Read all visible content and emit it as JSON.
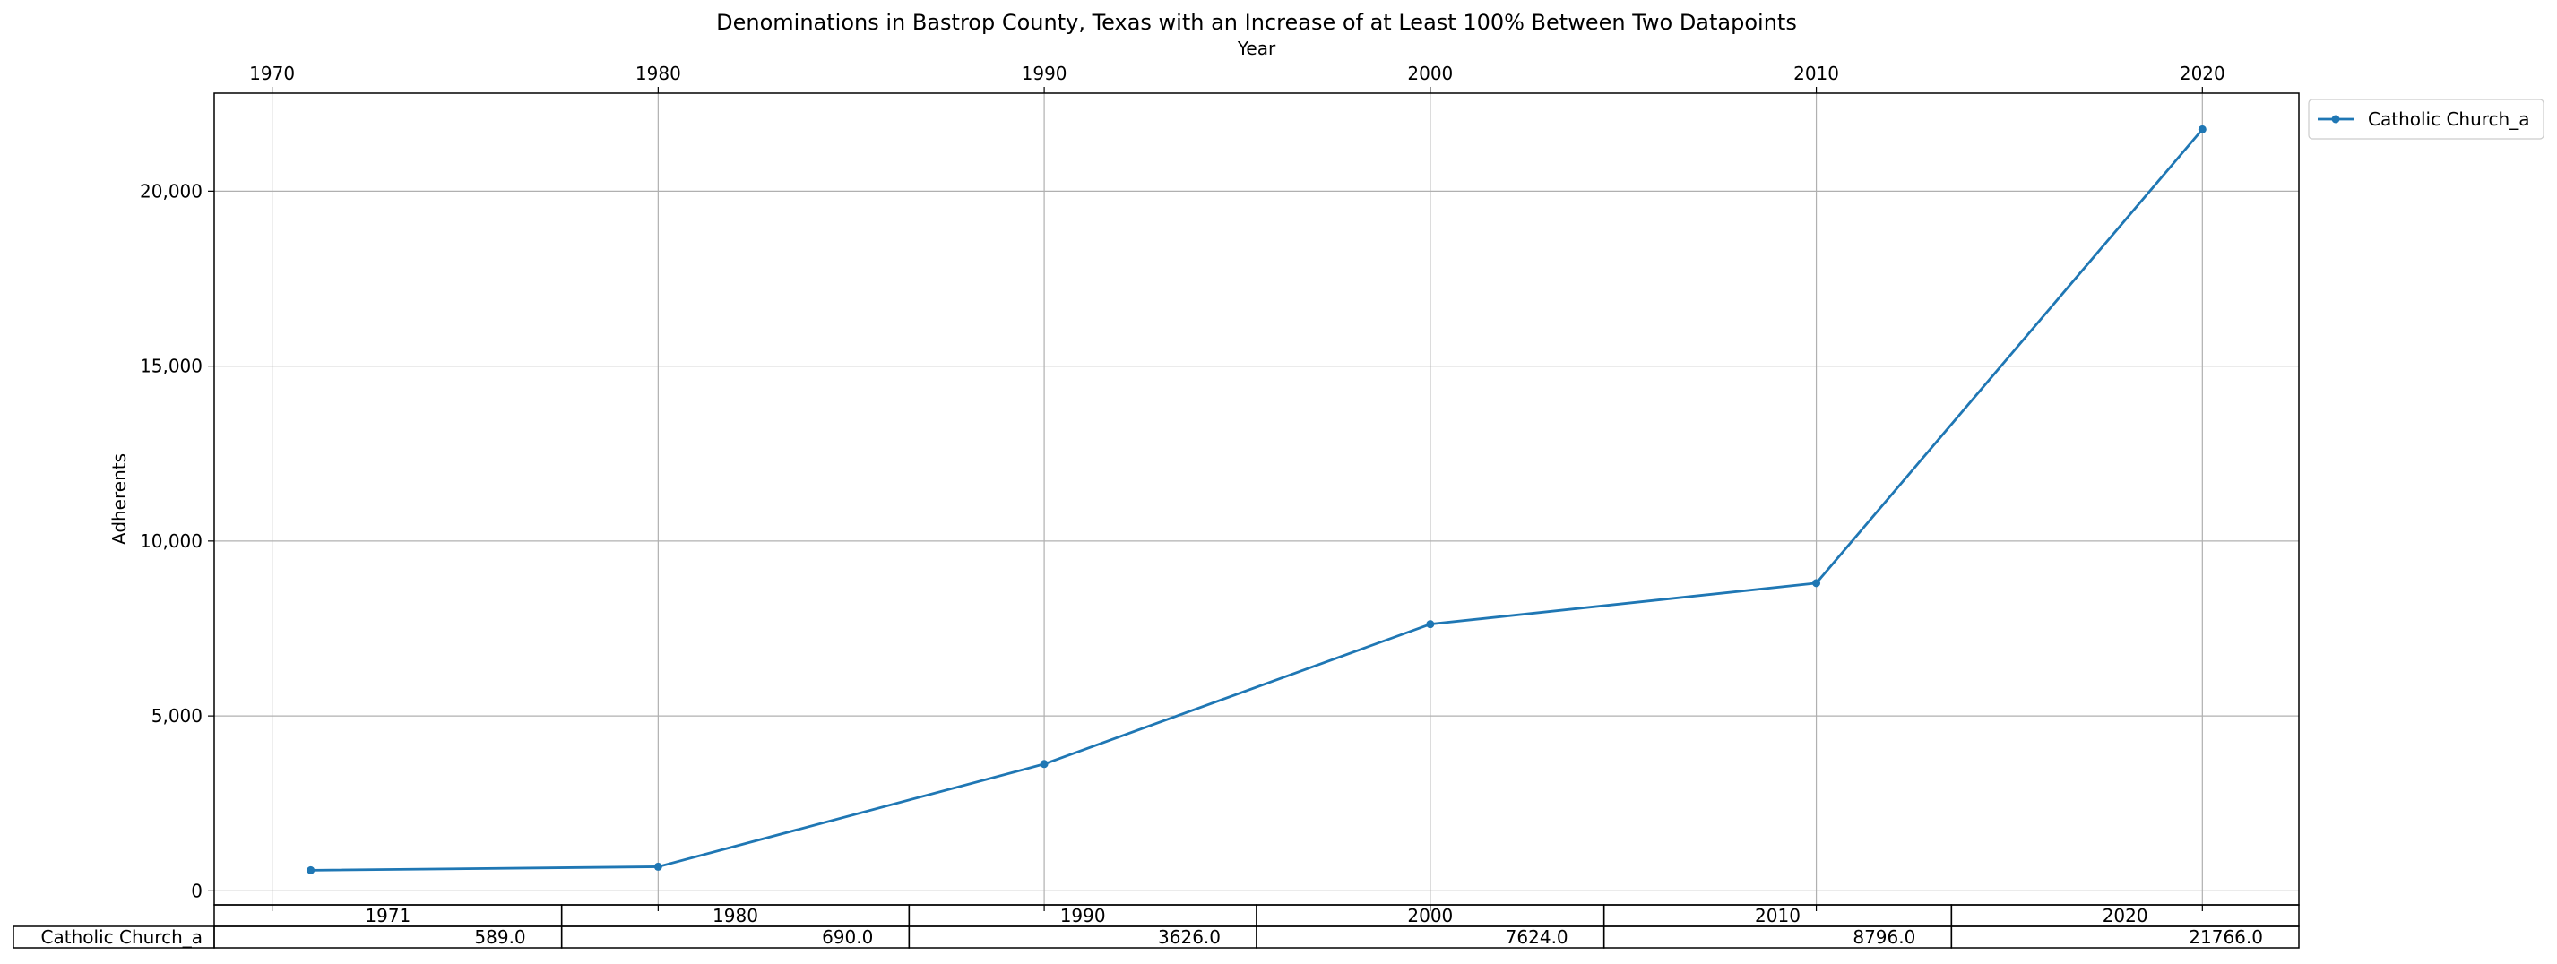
{
  "chart_data": {
    "type": "line",
    "title": "Denominations in Bastrop County, Texas with an Increase of at Least 100% Between Two Datapoints",
    "xlabel": "Year",
    "ylabel": "Adherents",
    "x_axis_position": "top",
    "x_ticks": [
      1970,
      1980,
      1990,
      2000,
      2010,
      2020
    ],
    "x_tick_labels": [
      "1970",
      "1980",
      "1990",
      "2000",
      "2010",
      "2020"
    ],
    "y_ticks": [
      0,
      5000,
      10000,
      15000,
      20000
    ],
    "y_tick_labels": [
      "0",
      "5,000",
      "10,000",
      "15,000",
      "20,000"
    ],
    "xlim": [
      1968.5,
      2022.5
    ],
    "ylim": [
      -400,
      22800
    ],
    "grid": true,
    "legend_position": "outside top-right",
    "series": [
      {
        "name": "Catholic Church_a",
        "color": "#1f77b4",
        "x": [
          1971,
          1980,
          1990,
          2000,
          2010,
          2020
        ],
        "values": [
          589.0,
          690.0,
          3626.0,
          7624.0,
          8796.0,
          21766.0
        ]
      }
    ],
    "table": {
      "columns": [
        "1971",
        "1980",
        "1990",
        "2000",
        "2010",
        "2020"
      ],
      "rows": [
        {
          "label": "Catholic Church_a",
          "cells": [
            "589.0",
            "690.0",
            "3626.0",
            "7624.0",
            "8796.0",
            "21766.0"
          ]
        }
      ]
    }
  }
}
